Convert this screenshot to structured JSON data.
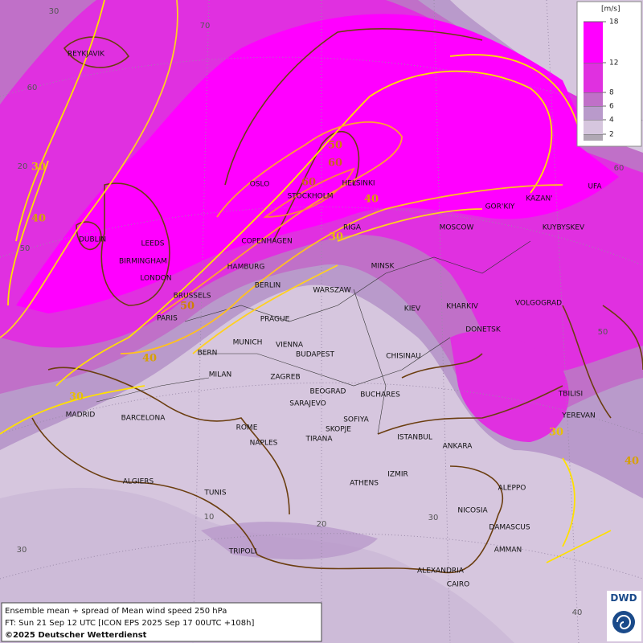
{
  "map": {
    "unit": "[m/s]",
    "legend": {
      "ticks": [
        2,
        4,
        6,
        8,
        12,
        18
      ],
      "colors": [
        "#b0a8b4",
        "#d6c6de",
        "#b99acb",
        "#c070c8",
        "#e030e0",
        "#ff00ff"
      ]
    },
    "cities": [
      "REYKJAVIK",
      "OSLO",
      "STOCKHOLM",
      "HELSINKI",
      "RIGA",
      "COPENHAGEN",
      "DUBLIN",
      "LEEDS",
      "BIRMINGHAM",
      "LONDON",
      "HAMBURG",
      "BERLIN",
      "BRUSSELS",
      "PARIS",
      "MINSK",
      "WARSZAW",
      "MOSCOW",
      "GOR'KIY",
      "KAZAN'",
      "UFA",
      "KUYBYSKEV",
      "KIEV",
      "KHARKIV",
      "VOLGOGRAD",
      "DONETSK",
      "PRAGUE",
      "MUNICH",
      "VIENNA",
      "BUDAPEST",
      "BERN",
      "MILAN",
      "ZAGREB",
      "CHISINAU",
      "BEOGRAD",
      "BUCHARES",
      "SARAJEVO",
      "SOFIYA",
      "SKOPJE",
      "TIRANA",
      "ISTANBUL",
      "ANKARA",
      "TBILISI",
      "YEREVAN",
      "MADRID",
      "BARCELONA",
      "ROME",
      "NAPLES",
      "ALGIERS",
      "TUNIS",
      "IZMIR",
      "ATHENS",
      "ALEPPO",
      "NICOSIA",
      "DAMASCUS",
      "AMMAN",
      "TRIPOLI",
      "ALEXANDRIA",
      "CAIRO"
    ],
    "contour_labels": [
      30,
      40,
      30,
      40,
      50,
      60,
      60,
      50,
      40,
      30,
      30,
      40
    ],
    "grid_labels": [
      30,
      70,
      60,
      20,
      50,
      60,
      50,
      10,
      20,
      30,
      40,
      30
    ]
  },
  "footer": {
    "lines": [
      "Ensemble mean + spread of Mean wind speed 250 hPa",
      "FT: Sun 21 Sep 12 UTC [ICON EPS 2025 Sep 17 00UTC +108h]"
    ],
    "copyright": "©2025 Deutscher Wetterdienst"
  },
  "logo": "DWD"
}
